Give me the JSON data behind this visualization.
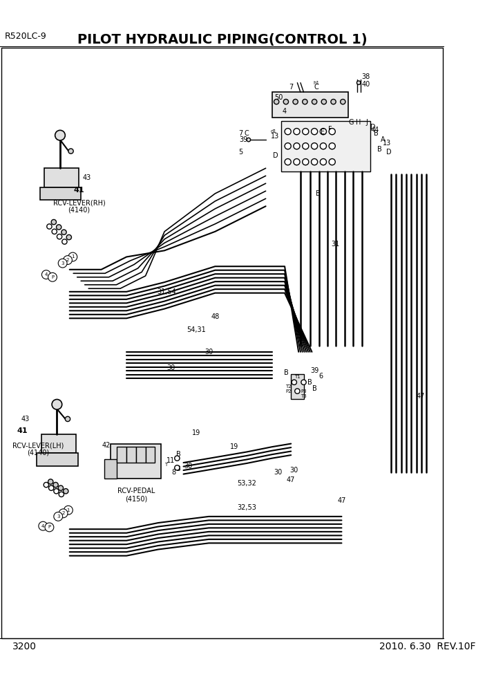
{
  "title": "PILOT HYDRAULIC PIPING(CONTROL 1)",
  "model": "R520LC-9",
  "page": "3200",
  "date": "2010. 6.30  REV.10F",
  "bg_color": "#ffffff",
  "line_color": "#000000",
  "fig_width": 7.02,
  "fig_height": 9.92,
  "dpi": 100
}
